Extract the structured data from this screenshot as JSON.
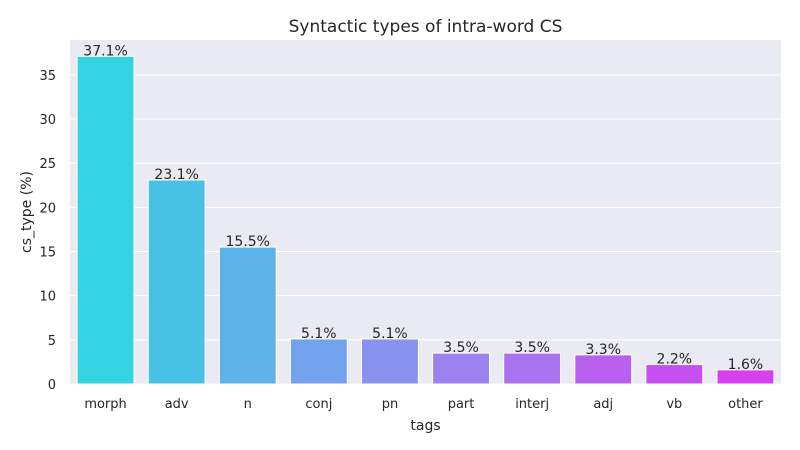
{
  "chart_data": {
    "type": "bar",
    "title": "Syntactic types of intra-word CS",
    "xlabel": "tags",
    "ylabel": "cs_type (%)",
    "categories": [
      "morph",
      "adv",
      "n",
      "conj",
      "pn",
      "part",
      "interj",
      "adj",
      "vb",
      "other"
    ],
    "values": [
      37.1,
      23.1,
      15.5,
      5.1,
      5.1,
      3.5,
      3.5,
      3.3,
      2.2,
      1.6
    ],
    "data_labels": [
      "37.1%",
      "23.1%",
      "15.5%",
      "5.1%",
      "5.1%",
      "3.5%",
      "3.5%",
      "3.3%",
      "2.2%",
      "1.6%"
    ],
    "colors": [
      "#33d3e2",
      "#48c1e5",
      "#5eb2ea",
      "#72a1ee",
      "#8892ef",
      "#9b82f0",
      "#a972f0",
      "#b95ff0",
      "#c74ef1",
      "#d83ff1"
    ],
    "yticks": [
      0,
      5,
      10,
      15,
      20,
      25,
      30,
      35
    ],
    "ylim": [
      0,
      38.95
    ],
    "grid": true,
    "legend": "none",
    "background": "#eaeaf2"
  }
}
